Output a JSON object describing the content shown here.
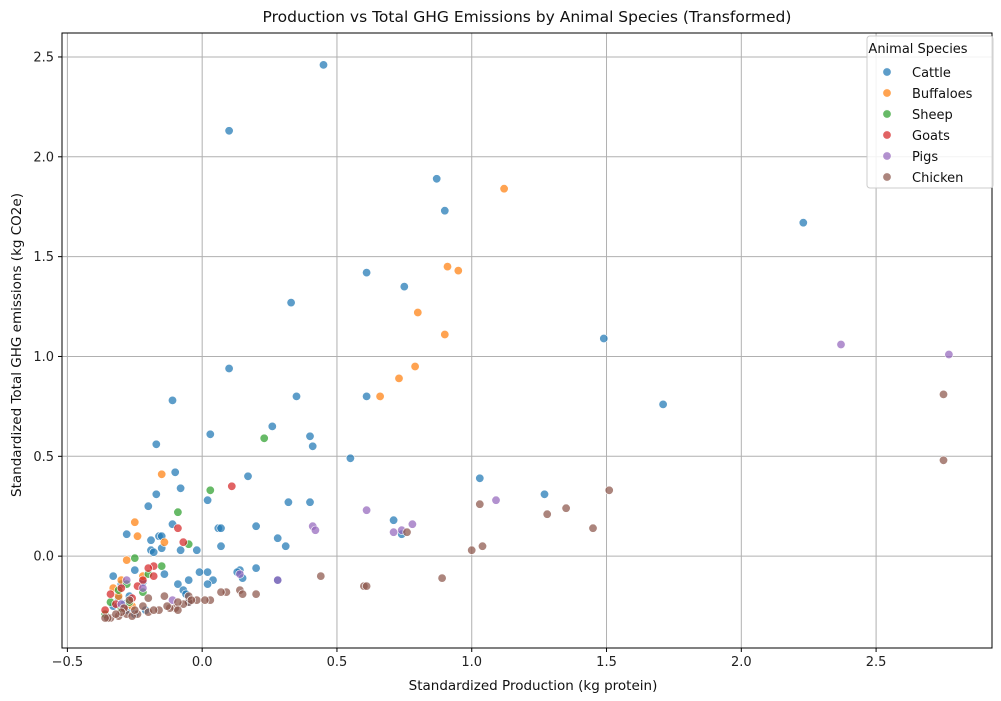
{
  "chart_data": {
    "type": "scatter",
    "title": "Production vs Total GHG Emissions by Animal Species (Transformed)",
    "xlabel": "Standardized Production (kg protein)",
    "ylabel": "Standardized Total GHG emissions (kg CO2e)",
    "xlim": [
      -0.52,
      2.93
    ],
    "ylim": [
      -0.46,
      2.62
    ],
    "xticks": [
      -0.5,
      0.0,
      0.5,
      1.0,
      1.5,
      2.0,
      2.5
    ],
    "xtick_labels": [
      "−0.5",
      "0.0",
      "0.5",
      "1.0",
      "1.5",
      "2.0",
      "2.5"
    ],
    "yticks": [
      0.0,
      0.5,
      1.0,
      1.5,
      2.0,
      2.5
    ],
    "ytick_labels": [
      "0.0",
      "0.5",
      "1.0",
      "1.5",
      "2.0",
      "2.5"
    ],
    "grid": true,
    "legend": {
      "title": "Animal Species",
      "placement": "top-right"
    },
    "series": [
      {
        "name": "Cattle",
        "color": "#1f77b4",
        "points": [
          [
            0.45,
            2.46
          ],
          [
            0.1,
            2.13
          ],
          [
            0.87,
            1.89
          ],
          [
            0.9,
            1.73
          ],
          [
            2.23,
            1.67
          ],
          [
            0.61,
            1.42
          ],
          [
            0.75,
            1.35
          ],
          [
            0.33,
            1.27
          ],
          [
            1.49,
            1.09
          ],
          [
            0.1,
            0.94
          ],
          [
            0.61,
            0.8
          ],
          [
            0.35,
            0.8
          ],
          [
            -0.11,
            0.78
          ],
          [
            1.71,
            0.76
          ],
          [
            0.26,
            0.65
          ],
          [
            0.03,
            0.61
          ],
          [
            0.4,
            0.6
          ],
          [
            -0.17,
            0.56
          ],
          [
            0.41,
            0.55
          ],
          [
            0.55,
            0.49
          ],
          [
            -0.1,
            0.42
          ],
          [
            0.17,
            0.4
          ],
          [
            1.03,
            0.39
          ],
          [
            -0.08,
            0.34
          ],
          [
            -0.17,
            0.31
          ],
          [
            1.27,
            0.31
          ],
          [
            0.02,
            0.28
          ],
          [
            0.32,
            0.27
          ],
          [
            0.4,
            0.27
          ],
          [
            -0.2,
            0.25
          ],
          [
            0.71,
            0.18
          ],
          [
            0.2,
            0.15
          ],
          [
            -0.11,
            0.16
          ],
          [
            0.06,
            0.14
          ],
          [
            0.07,
            0.14
          ],
          [
            -0.28,
            0.11
          ],
          [
            0.74,
            0.11
          ],
          [
            0.28,
            0.09
          ],
          [
            -0.16,
            0.1
          ],
          [
            -0.19,
            0.08
          ],
          [
            0.07,
            0.05
          ],
          [
            0.31,
            0.05
          ],
          [
            -0.15,
            0.04
          ],
          [
            -0.02,
            0.03
          ],
          [
            -0.19,
            0.03
          ],
          [
            -0.08,
            0.03
          ],
          [
            -0.18,
            0.02
          ],
          [
            0.2,
            -0.06
          ],
          [
            -0.25,
            -0.07
          ],
          [
            0.02,
            -0.08
          ],
          [
            -0.01,
            -0.08
          ],
          [
            0.14,
            -0.07
          ],
          [
            0.13,
            -0.08
          ],
          [
            -0.14,
            -0.09
          ],
          [
            0.15,
            -0.11
          ],
          [
            -0.33,
            -0.1
          ],
          [
            -0.05,
            -0.12
          ],
          [
            -0.09,
            -0.14
          ],
          [
            0.04,
            -0.12
          ],
          [
            0.02,
            -0.14
          ],
          [
            -0.3,
            -0.14
          ],
          [
            -0.22,
            -0.13
          ],
          [
            -0.07,
            -0.17
          ],
          [
            -0.06,
            -0.19
          ],
          [
            -0.27,
            -0.2
          ],
          [
            -0.31,
            -0.21
          ],
          [
            -0.05,
            -0.23
          ],
          [
            -0.33,
            -0.25
          ],
          [
            -0.28,
            -0.27
          ],
          [
            -0.21,
            -0.27
          ],
          [
            -0.29,
            -0.24
          ],
          [
            -0.25,
            -0.29
          ],
          [
            0.28,
            -0.12
          ],
          [
            -0.15,
            0.1
          ]
        ]
      },
      {
        "name": "Buffaloes",
        "color": "#ff7f0e",
        "points": [
          [
            1.12,
            1.84
          ],
          [
            0.91,
            1.45
          ],
          [
            0.95,
            1.43
          ],
          [
            0.8,
            1.22
          ],
          [
            0.9,
            1.11
          ],
          [
            0.79,
            0.95
          ],
          [
            0.73,
            0.89
          ],
          [
            0.66,
            0.8
          ],
          [
            -0.15,
            0.41
          ],
          [
            -0.25,
            0.17
          ],
          [
            -0.14,
            0.07
          ],
          [
            -0.28,
            -0.02
          ],
          [
            -0.3,
            -0.12
          ],
          [
            -0.22,
            -0.1
          ],
          [
            -0.31,
            -0.2
          ],
          [
            -0.26,
            -0.25
          ],
          [
            -0.33,
            -0.16
          ],
          [
            -0.24,
            0.1
          ]
        ]
      },
      {
        "name": "Sheep",
        "color": "#2ca02c",
        "points": [
          [
            0.23,
            0.59
          ],
          [
            0.03,
            0.33
          ],
          [
            -0.09,
            0.22
          ],
          [
            -0.25,
            -0.01
          ],
          [
            -0.15,
            -0.05
          ],
          [
            -0.2,
            -0.09
          ],
          [
            -0.28,
            -0.14
          ],
          [
            -0.31,
            -0.17
          ],
          [
            -0.27,
            -0.23
          ],
          [
            -0.3,
            -0.26
          ],
          [
            -0.34,
            -0.23
          ],
          [
            -0.22,
            -0.18
          ],
          [
            -0.05,
            0.06
          ],
          [
            -0.36,
            -0.29
          ]
        ]
      },
      {
        "name": "Goats",
        "color": "#d62728",
        "points": [
          [
            0.11,
            0.35
          ],
          [
            -0.09,
            0.14
          ],
          [
            -0.07,
            0.07
          ],
          [
            -0.18,
            -0.05
          ],
          [
            -0.2,
            -0.06
          ],
          [
            -0.18,
            -0.1
          ],
          [
            -0.22,
            -0.12
          ],
          [
            -0.3,
            -0.16
          ],
          [
            -0.34,
            -0.19
          ],
          [
            -0.32,
            -0.24
          ],
          [
            -0.29,
            -0.26
          ],
          [
            -0.36,
            -0.27
          ],
          [
            -0.26,
            -0.21
          ],
          [
            -0.24,
            -0.15
          ]
        ]
      },
      {
        "name": "Pigs",
        "color": "#9467bd",
        "points": [
          [
            2.37,
            1.06
          ],
          [
            2.77,
            1.01
          ],
          [
            1.09,
            0.28
          ],
          [
            0.61,
            0.23
          ],
          [
            0.78,
            0.16
          ],
          [
            0.41,
            0.15
          ],
          [
            0.42,
            0.13
          ],
          [
            0.71,
            0.12
          ],
          [
            0.74,
            0.13
          ],
          [
            0.28,
            -0.12
          ],
          [
            0.14,
            -0.09
          ],
          [
            -0.11,
            -0.22
          ],
          [
            -0.28,
            -0.12
          ],
          [
            -0.3,
            -0.24
          ],
          [
            -0.22,
            -0.16
          ]
        ]
      },
      {
        "name": "Chicken",
        "color": "#8c564b",
        "points": [
          [
            2.75,
            0.81
          ],
          [
            2.75,
            0.48
          ],
          [
            1.51,
            0.33
          ],
          [
            1.03,
            0.26
          ],
          [
            1.35,
            0.24
          ],
          [
            1.28,
            0.21
          ],
          [
            1.45,
            0.14
          ],
          [
            0.76,
            0.12
          ],
          [
            1.04,
            0.05
          ],
          [
            1.0,
            0.03
          ],
          [
            0.44,
            -0.1
          ],
          [
            0.89,
            -0.11
          ],
          [
            0.6,
            -0.15
          ],
          [
            0.61,
            -0.15
          ],
          [
            0.14,
            -0.17
          ],
          [
            0.15,
            -0.19
          ],
          [
            0.09,
            -0.18
          ],
          [
            0.07,
            -0.18
          ],
          [
            0.2,
            -0.19
          ],
          [
            -0.02,
            -0.22
          ],
          [
            0.03,
            -0.22
          ],
          [
            -0.05,
            -0.23
          ],
          [
            -0.07,
            -0.24
          ],
          [
            -0.1,
            -0.26
          ],
          [
            -0.12,
            -0.26
          ],
          [
            -0.16,
            -0.27
          ],
          [
            -0.2,
            -0.28
          ],
          [
            -0.24,
            -0.29
          ],
          [
            -0.28,
            -0.29
          ],
          [
            -0.31,
            -0.3
          ],
          [
            -0.34,
            -0.31
          ],
          [
            -0.35,
            -0.31
          ],
          [
            -0.36,
            -0.31
          ],
          [
            -0.26,
            -0.3
          ],
          [
            -0.18,
            -0.27
          ],
          [
            -0.29,
            -0.26
          ],
          [
            -0.3,
            -0.28
          ],
          [
            -0.14,
            -0.2
          ],
          [
            -0.09,
            -0.23
          ],
          [
            -0.05,
            -0.2
          ],
          [
            -0.04,
            -0.22
          ],
          [
            0.01,
            -0.22
          ],
          [
            -0.22,
            -0.25
          ],
          [
            -0.32,
            -0.29
          ],
          [
            -0.27,
            -0.22
          ],
          [
            -0.2,
            -0.21
          ],
          [
            -0.13,
            -0.25
          ],
          [
            -0.09,
            -0.27
          ],
          [
            -0.25,
            -0.27
          ]
        ]
      }
    ]
  }
}
